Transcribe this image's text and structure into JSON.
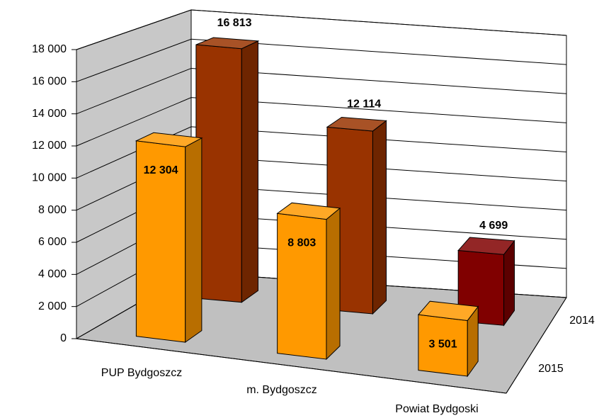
{
  "chart_data": {
    "type": "bar3d",
    "categories": [
      "PUP Bydgoszcz",
      "m. Bydgoszcz",
      "Powiat Bydgoski"
    ],
    "series": [
      {
        "name": "2014",
        "colors": [
          "#993300",
          "#993300",
          "#800000"
        ],
        "values": [
          16813,
          12114,
          4699
        ],
        "value_labels": [
          "16 813",
          "12 114",
          "4 699"
        ]
      },
      {
        "name": "2015",
        "colors": [
          "#ff9900",
          "#ff9900",
          "#ff9900"
        ],
        "values": [
          12304,
          8803,
          3501
        ],
        "value_labels": [
          "12 304",
          "8 803",
          "3 501"
        ]
      }
    ],
    "ylim": [
      0,
      18000
    ],
    "yticks": [
      0,
      {
        "value": 2000,
        "label": "2 000"
      },
      {
        "value": 4000,
        "label": "4 000"
      },
      {
        "value": 6000,
        "label": "6 000"
      },
      {
        "value": 8000,
        "label": "8 000"
      },
      {
        "value": 10000,
        "label": "10 000"
      },
      {
        "value": 12000,
        "label": "12 000"
      },
      {
        "value": 14000,
        "label": "14 000"
      },
      {
        "value": 16000,
        "label": "16 000"
      },
      {
        "value": 18000,
        "label": "18 000"
      }
    ],
    "grid": true
  }
}
